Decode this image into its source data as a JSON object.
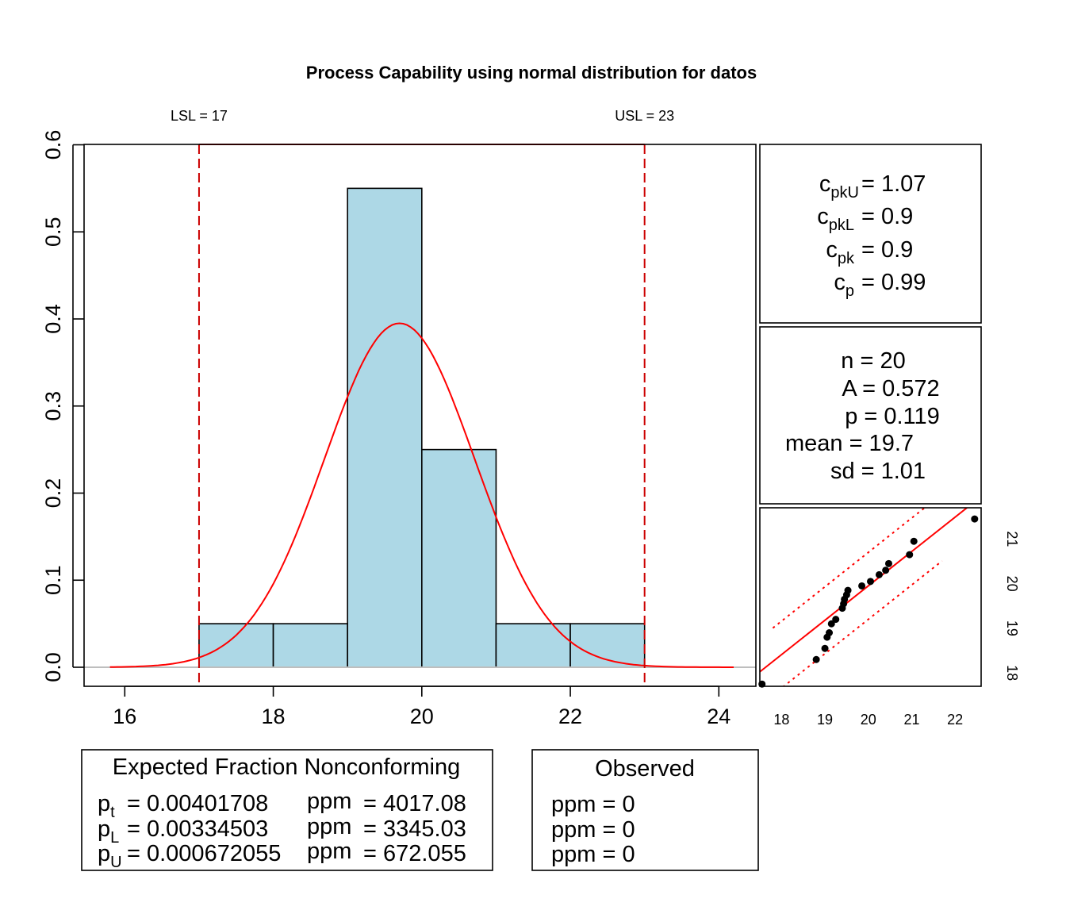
{
  "chart_data": [
    {
      "type": "bar",
      "title": "Process Capability using normal distribution for datos",
      "bins": [
        {
          "from": 17,
          "to": 18,
          "density": 0.05
        },
        {
          "from": 18,
          "to": 19,
          "density": 0.05
        },
        {
          "from": 19,
          "to": 20,
          "density": 0.55
        },
        {
          "from": 20,
          "to": 21,
          "density": 0.25
        },
        {
          "from": 21,
          "to": 22,
          "density": 0.05
        },
        {
          "from": 22,
          "to": 23,
          "density": 0.05
        }
      ],
      "normal_curve": {
        "mean": 19.7,
        "sd": 1.01,
        "from": 15.8,
        "to": 24.2
      },
      "xlim": [
        15.5,
        24.5
      ],
      "ylim": [
        0,
        0.6
      ],
      "xticks": [
        "16",
        "18",
        "20",
        "22",
        "24"
      ],
      "yticks": [
        "0.0",
        "0.1",
        "0.2",
        "0.3",
        "0.4",
        "0.5",
        "0.6"
      ],
      "spec_limits": [
        {
          "label": "LSL = 17",
          "value": 17
        },
        {
          "label": "USL = 23",
          "value": 23
        }
      ],
      "colors": {
        "bars": "#add8e6",
        "curve": "#ff0000",
        "limits": "#cc0000",
        "baseline": "#bebebe"
      }
    },
    {
      "type": "scatter",
      "xlim": [
        17.5,
        22.6
      ],
      "ylim": [
        17.7,
        21.7
      ],
      "xticks": [
        "18",
        "19",
        "20",
        "21",
        "22"
      ],
      "yticks": [
        "18",
        "19",
        "20",
        "21"
      ],
      "points": [
        {
          "x": 17.55,
          "y": 17.75
        },
        {
          "x": 18.8,
          "y": 18.3
        },
        {
          "x": 19.0,
          "y": 18.55
        },
        {
          "x": 19.05,
          "y": 18.8
        },
        {
          "x": 19.1,
          "y": 18.9
        },
        {
          "x": 19.15,
          "y": 19.1
        },
        {
          "x": 19.25,
          "y": 19.2
        },
        {
          "x": 19.4,
          "y": 19.45
        },
        {
          "x": 19.43,
          "y": 19.55
        },
        {
          "x": 19.45,
          "y": 19.65
        },
        {
          "x": 19.5,
          "y": 19.75
        },
        {
          "x": 19.53,
          "y": 19.85
        },
        {
          "x": 19.85,
          "y": 19.95
        },
        {
          "x": 20.05,
          "y": 20.05
        },
        {
          "x": 20.25,
          "y": 20.2
        },
        {
          "x": 20.4,
          "y": 20.3
        },
        {
          "x": 20.47,
          "y": 20.45
        },
        {
          "x": 20.95,
          "y": 20.65
        },
        {
          "x": 21.05,
          "y": 20.95
        },
        {
          "x": 22.45,
          "y": 21.45
        }
      ],
      "fit_line": {
        "slope": 0.77,
        "intercept": 4.55
      },
      "band_offset": 0.75
    }
  ],
  "capability": {
    "cpkU": {
      "sym": "c",
      "sub": "pkU",
      "value": "= 1.07"
    },
    "cpkL": {
      "sym": "c",
      "sub": "pkL",
      "value": "= 0.9"
    },
    "cpk": {
      "sym": "c",
      "sub": "pk",
      "value": "= 0.9"
    },
    "cp": {
      "sym": "c",
      "sub": "p",
      "value": "= 0.99"
    }
  },
  "summary": {
    "n": "n = 20",
    "A": "A = 0.572",
    "p": "p = 0.119",
    "mean": "mean = 19.7",
    "sd": "sd = 1.01"
  },
  "expected": {
    "title": "Expected Fraction Nonconforming",
    "rows": [
      {
        "sym": "p",
        "sub": "t",
        "value": "= 0.00401708",
        "ppm_label": "ppm",
        "ppm_value": "= 4017.08"
      },
      {
        "sym": "p",
        "sub": "L",
        "value": "= 0.00334503",
        "ppm_label": "ppm",
        "ppm_value": "= 3345.03"
      },
      {
        "sym": "p",
        "sub": "U",
        "value": "= 0.000672055",
        "ppm_label": "ppm",
        "ppm_value": "= 672.055"
      }
    ]
  },
  "observed": {
    "title": "Observed",
    "rows": [
      "ppm = 0",
      "ppm = 0",
      "ppm = 0"
    ]
  }
}
